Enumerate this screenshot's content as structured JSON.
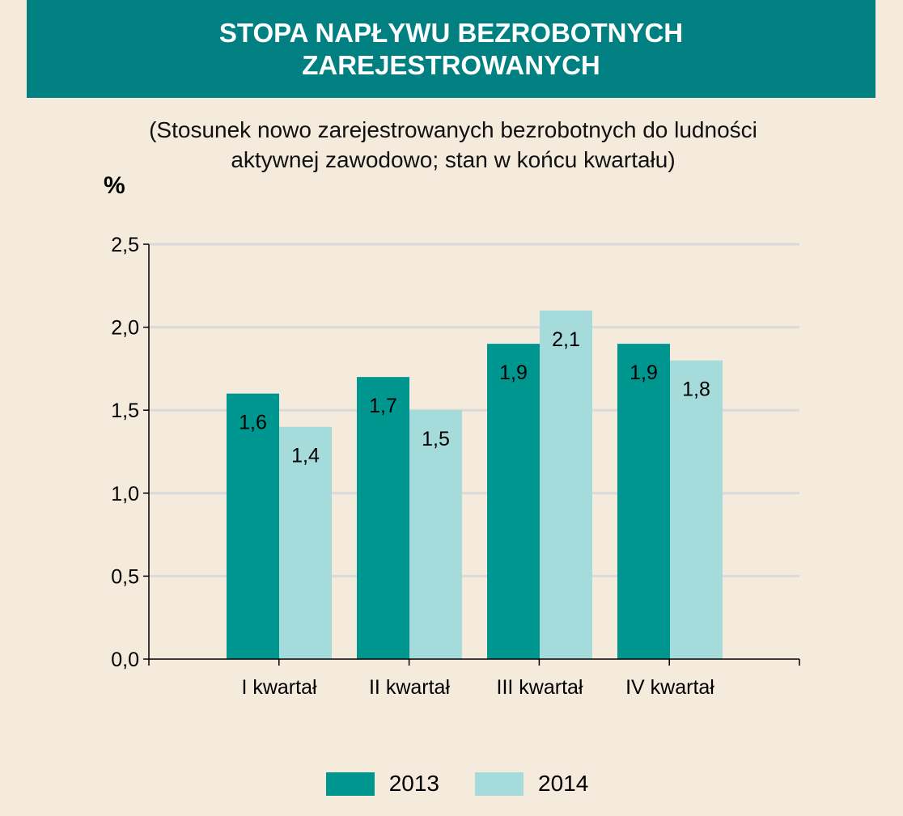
{
  "header": {
    "title": "STOPA NAPŁYWU BEZROBOTNYCH ZAREJESTROWANYCH",
    "subtitle": "(Stosunek nowo zarejestrowanych bezrobotnych do ludności aktywnej zawodowo; stan w końcu kwartału)",
    "unit": "%"
  },
  "colors": {
    "banner": "#008080",
    "background": "#f5ebdd",
    "series_2013": "#009690",
    "series_2014": "#a6dbdb",
    "grid": "#dadada"
  },
  "chart_data": {
    "type": "bar",
    "title": "STOPA NAPŁYWU BEZROBOTNYCH ZAREJESTROWANYCH",
    "subtitle": "(Stosunek nowo zarejestrowanych bezrobotnych do ludności aktywnej zawodowo; stan w końcu kwartału)",
    "ylabel": "%",
    "xlabel": "",
    "categories": [
      "I kwartał",
      "II kwartał",
      "III kwartał",
      "IV kwartał"
    ],
    "series": [
      {
        "name": "2013",
        "values": [
          1.6,
          1.7,
          1.9,
          1.9
        ],
        "labels": [
          "1,6",
          "1,7",
          "1,9",
          "1,9"
        ]
      },
      {
        "name": "2014",
        "values": [
          1.4,
          1.5,
          2.1,
          1.8
        ],
        "labels": [
          "1,4",
          "1,5",
          "2,1",
          "1,8"
        ]
      }
    ],
    "ylim": [
      0,
      2.5
    ],
    "yticks": [
      0,
      0.5,
      1.0,
      1.5,
      2.0,
      2.5
    ],
    "ytick_labels": [
      "0,0",
      "0,5",
      "1,0",
      "1,5",
      "2,0",
      "2,5"
    ],
    "grid": true,
    "legend_position": "bottom"
  }
}
